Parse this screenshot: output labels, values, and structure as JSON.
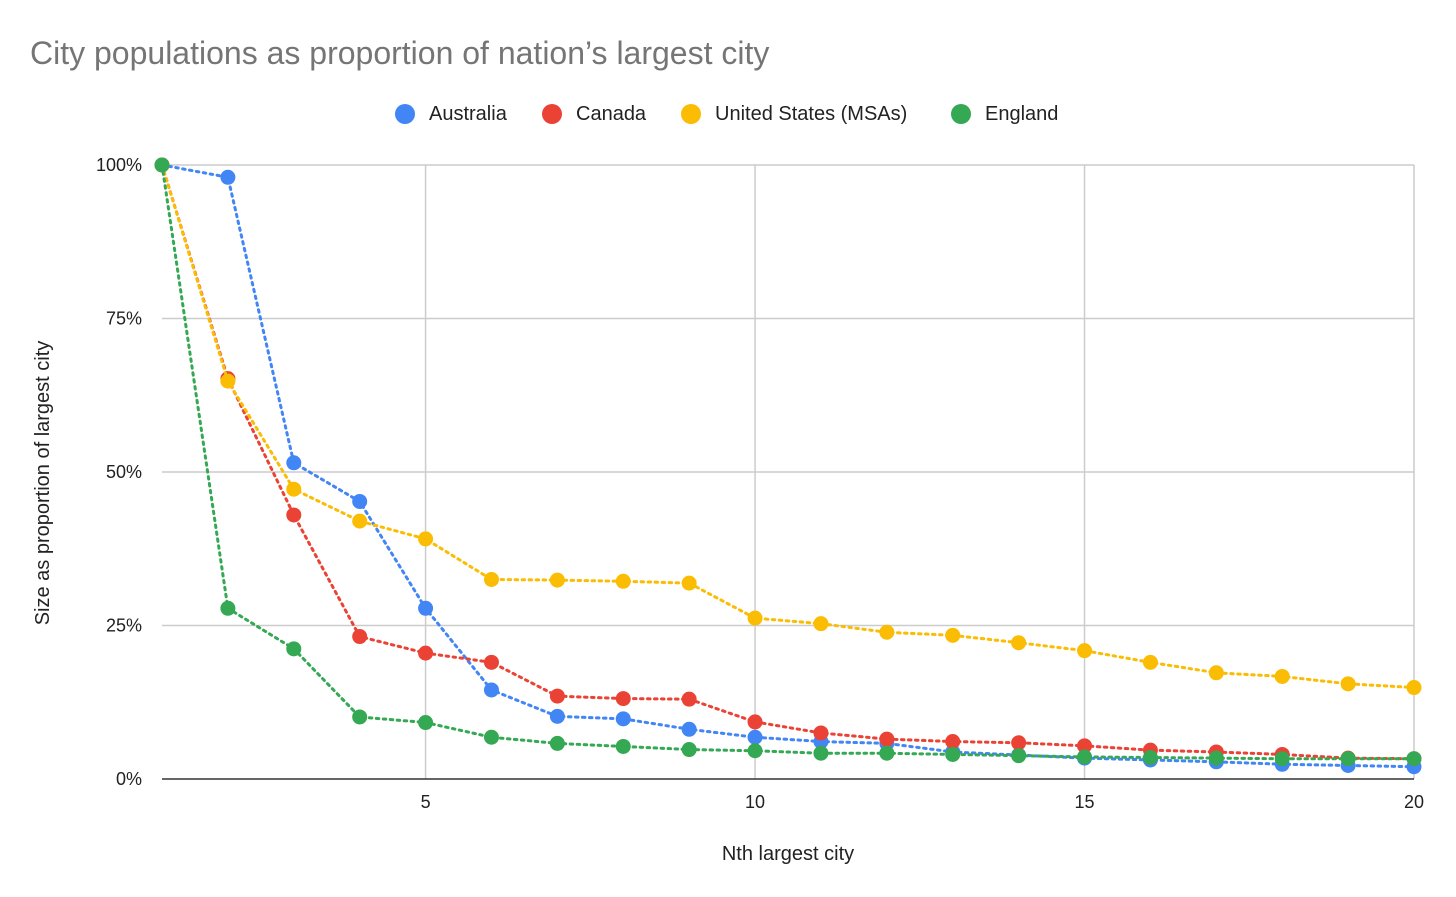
{
  "chart_data": {
    "type": "line",
    "title": "City populations as proportion of nation’s largest city",
    "xlabel": "Nth largest city",
    "ylabel": "Size as proportion of largest city",
    "xlim": [
      1,
      20
    ],
    "ylim": [
      0,
      1
    ],
    "xticks": [
      5,
      10,
      15,
      20
    ],
    "xtick_labels": [
      "5",
      "10",
      "15",
      "20"
    ],
    "yticks": [
      0,
      0.25,
      0.5,
      0.75,
      1
    ],
    "ytick_labels": [
      "0%",
      "25%",
      "50%",
      "75%",
      "100%"
    ],
    "grid": true,
    "legend_position": "top",
    "x": [
      1,
      2,
      3,
      4,
      5,
      6,
      7,
      8,
      9,
      10,
      11,
      12,
      13,
      14,
      15,
      16,
      17,
      18,
      19,
      20
    ],
    "series": [
      {
        "name": "Australia",
        "color": "#4285F4",
        "values": [
          1.0,
          0.98,
          0.515,
          0.452,
          0.278,
          0.145,
          0.102,
          0.098,
          0.081,
          0.068,
          0.061,
          0.058,
          0.044,
          0.039,
          0.034,
          0.031,
          0.028,
          0.024,
          0.022,
          0.02
        ]
      },
      {
        "name": "Canada",
        "color": "#EA4335",
        "values": [
          1.0,
          0.652,
          0.43,
          0.232,
          0.205,
          0.19,
          0.135,
          0.131,
          0.13,
          0.093,
          0.075,
          0.065,
          0.061,
          0.059,
          0.054,
          0.047,
          0.044,
          0.04,
          0.034,
          0.033
        ]
      },
      {
        "name": "United States (MSAs)",
        "color": "#FBBC04",
        "values": [
          1.0,
          0.648,
          0.472,
          0.42,
          0.391,
          0.325,
          0.324,
          0.322,
          0.319,
          0.262,
          0.253,
          0.239,
          0.234,
          0.222,
          0.209,
          0.19,
          0.173,
          0.167,
          0.155,
          0.149
        ]
      },
      {
        "name": "England",
        "color": "#34A853",
        "values": [
          1.0,
          0.278,
          0.212,
          0.101,
          0.092,
          0.068,
          0.058,
          0.053,
          0.048,
          0.046,
          0.042,
          0.042,
          0.04,
          0.038,
          0.036,
          0.035,
          0.034,
          0.033,
          0.033,
          0.033
        ]
      }
    ]
  }
}
